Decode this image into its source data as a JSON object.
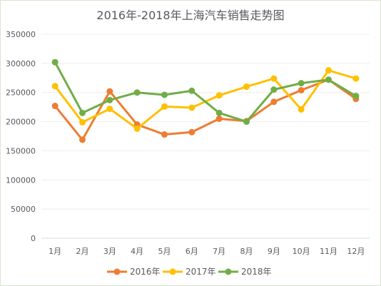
{
  "chart_data": {
    "type": "line",
    "title": "2016年-2018年上海汽车销售走势图",
    "xlabel": "",
    "ylabel": "",
    "categories": [
      "1月",
      "2月",
      "3月",
      "4月",
      "5月",
      "6月",
      "7月",
      "8月",
      "9月",
      "10月",
      "11月",
      "12月"
    ],
    "ylim": [
      0,
      350000
    ],
    "yticks": [
      0,
      50000,
      100000,
      150000,
      200000,
      250000,
      300000,
      350000
    ],
    "grid": true,
    "legend": "bottom",
    "series": [
      {
        "name": "2016年",
        "color": "#ed7d31",
        "values": [
          227000,
          169000,
          252000,
          195000,
          178000,
          182000,
          205000,
          201000,
          234000,
          254000,
          272000,
          239000
        ]
      },
      {
        "name": "2017年",
        "color": "#ffc000",
        "values": [
          261000,
          199000,
          222000,
          188000,
          226000,
          224000,
          245000,
          260000,
          274000,
          221000,
          288000,
          274000
        ]
      },
      {
        "name": "2018年",
        "color": "#70ad47",
        "values": [
          302000,
          215000,
          237000,
          250000,
          246000,
          253000,
          215000,
          200000,
          255000,
          266000,
          272000,
          244000
        ]
      }
    ]
  }
}
